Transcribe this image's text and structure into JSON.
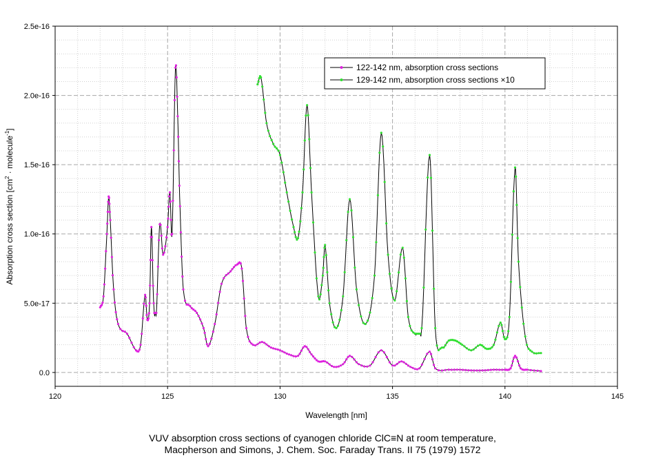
{
  "chart_data": {
    "type": "line",
    "xlabel": "Wavelength [nm]",
    "ylabel": "Absorption cross section [cm",
    "ylabel_sup1": "2",
    "ylabel_mid": " · molecule",
    "ylabel_sup2": "-1",
    "ylabel_end": "]",
    "xlim": [
      120,
      145
    ],
    "ylim": [
      -1e-17,
      2.5e-16
    ],
    "x_ticks": [
      120,
      125,
      130,
      135,
      140,
      145
    ],
    "x_tick_labels": [
      "120",
      "125",
      "130",
      "135",
      "140",
      "145"
    ],
    "y_ticks": [
      0,
      5e-17,
      1e-16,
      1.5e-16,
      2e-16,
      2.5e-16
    ],
    "y_tick_labels": [
      "0.0",
      "5.0e-17",
      "1.0e-16",
      "1.5e-16",
      "2.0e-16",
      "2.5e-16"
    ],
    "grid": true,
    "legend_position": "top-right",
    "series": [
      {
        "name": "122-142 nm, absorption cross sections",
        "line_color": "#000000",
        "marker_color": "#e020e0",
        "x": [
          122.0,
          122.15,
          122.3,
          122.38,
          122.45,
          122.6,
          122.8,
          123.2,
          123.6,
          123.8,
          124.0,
          124.1,
          124.2,
          124.28,
          124.38,
          124.5,
          124.65,
          124.8,
          125.0,
          125.1,
          125.2,
          125.35,
          125.45,
          125.55,
          125.7,
          126.0,
          126.3,
          126.6,
          126.8,
          127.1,
          127.4,
          127.8,
          128.1,
          128.3,
          128.5,
          128.8,
          129.2,
          129.6,
          130.0,
          130.4,
          130.8,
          131.1,
          131.4,
          131.7,
          132.0,
          132.4,
          132.8,
          133.1,
          133.5,
          134.0,
          134.5,
          135.0,
          135.4,
          135.8,
          136.2,
          136.65,
          136.9,
          137.5,
          138.0,
          138.5,
          139.0,
          139.5,
          140.0,
          140.25,
          140.45,
          140.7,
          141.0,
          141.6
        ],
        "y": [
          4.7e-17,
          5.5e-17,
          1e-16,
          1.27e-16,
          1.1e-16,
          6e-17,
          3.5e-17,
          2.8e-17,
          1.6e-17,
          2e-17,
          5.6e-17,
          3.8e-17,
          5e-17,
          1.05e-16,
          5e-17,
          4.3e-17,
          1.07e-16,
          8.5e-17,
          1.05e-16,
          1.3e-16,
          1e-16,
          2.2e-16,
          1.85e-16,
          1.2e-16,
          6e-17,
          4.8e-17,
          4.3e-17,
          3.2e-17,
          1.9e-17,
          3.5e-17,
          6.4e-17,
          7.3e-17,
          7.8e-17,
          7.5e-17,
          3.2e-17,
          2e-17,
          2.2e-17,
          1.8e-17,
          1.6e-17,
          1.3e-17,
          1.2e-17,
          1.9e-17,
          1.3e-17,
          8e-18,
          8e-18,
          4e-18,
          6e-18,
          1.2e-17,
          6e-18,
          5e-18,
          1.6e-17,
          5e-18,
          8e-18,
          4e-18,
          3e-18,
          1.5e-17,
          3e-18,
          2e-18,
          2e-18,
          1.5e-18,
          1.5e-18,
          2e-18,
          2e-18,
          3e-18,
          1.2e-17,
          3e-18,
          2e-18,
          1e-18
        ]
      },
      {
        "name": "129-142 nm, absorption cross sections ×10",
        "line_color": "#000000",
        "marker_color": "#30e030",
        "x": [
          129.0,
          129.15,
          129.4,
          129.7,
          130.0,
          130.3,
          130.6,
          130.8,
          131.0,
          131.2,
          131.4,
          131.7,
          131.9,
          132.0,
          132.2,
          132.5,
          132.8,
          133.1,
          133.4,
          133.8,
          134.2,
          134.5,
          134.8,
          135.1,
          135.45,
          135.7,
          136.0,
          136.3,
          136.65,
          136.9,
          137.2,
          137.5,
          137.8,
          138.1,
          138.5,
          138.9,
          139.2,
          139.5,
          139.8,
          140.0,
          140.2,
          140.45,
          140.6,
          140.9,
          141.2,
          141.6
        ],
        "y": [
          2.08e-16,
          2.13e-16,
          1.8e-16,
          1.65e-16,
          1.57e-16,
          1.3e-16,
          1.05e-16,
          9.7e-17,
          1.3e-16,
          1.93e-16,
          1.3e-16,
          5.5e-17,
          7e-17,
          9.2e-17,
          5e-17,
          3.2e-17,
          5.5e-17,
          1.25e-16,
          6e-17,
          3.5e-17,
          7e-17,
          1.73e-16,
          8.5e-17,
          5.2e-17,
          9e-17,
          4e-17,
          2.8e-17,
          3.2e-17,
          1.57e-16,
          3.2e-17,
          1.8e-17,
          2.3e-17,
          2.3e-17,
          2e-17,
          1.6e-17,
          2e-17,
          1.7e-17,
          2e-17,
          3.6e-17,
          2.4e-17,
          4e-17,
          1.48e-16,
          8e-17,
          2.6e-17,
          1.5e-17,
          1.4e-17
        ]
      }
    ]
  },
  "caption": {
    "line1": "VUV absorption cross sections of cyanogen chloride ClC≡N at room temperature,",
    "line2": "Macpherson and Simons,  J. Chem. Soc. Faraday Trans. II 75 (1979) 1572"
  }
}
